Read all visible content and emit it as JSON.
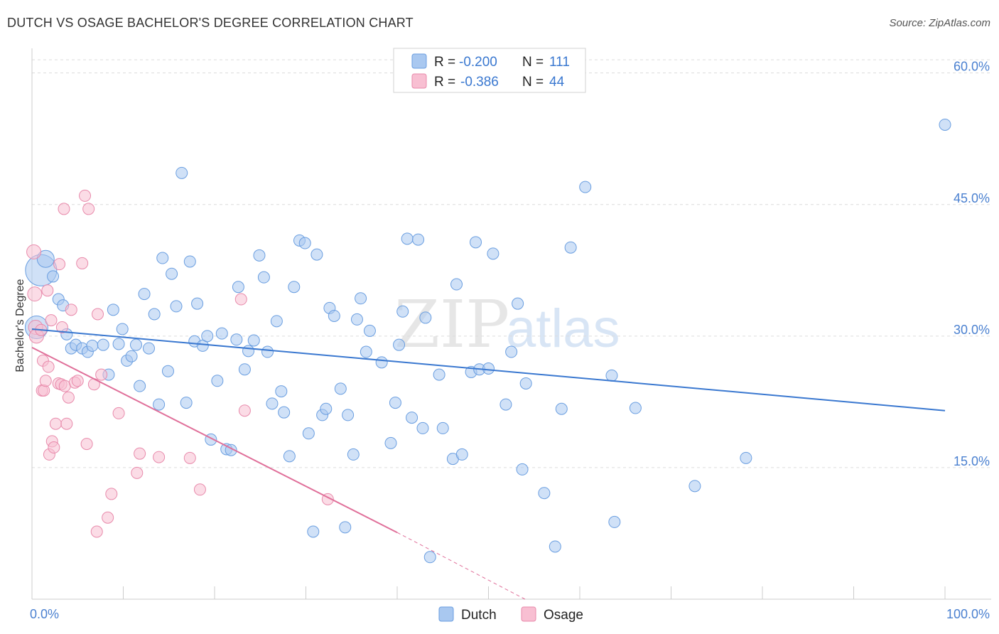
{
  "title": "DUTCH VS OSAGE BACHELOR'S DEGREE CORRELATION CHART",
  "source": "Source: ZipAtlas.com",
  "watermark": {
    "zip": "ZIP",
    "atlas": "atlas"
  },
  "legend": {
    "items": [
      {
        "r_label": "R =",
        "r_value": "-0.200",
        "n_label": "N =",
        "n_value": "111",
        "color": "#a9c8f0",
        "stroke": "#6a9ee0"
      },
      {
        "r_label": "R =",
        "r_value": "-0.386",
        "n_label": "N =",
        "n_value": "44",
        "color": "#f8bfd2",
        "stroke": "#e88aab"
      }
    ]
  },
  "bottom_legend": [
    {
      "label": "Dutch",
      "color": "#a9c8f0",
      "stroke": "#6a9ee0"
    },
    {
      "label": "Osage",
      "color": "#f8bfd2",
      "stroke": "#e88aab"
    }
  ],
  "chart_data": {
    "type": "scatter",
    "title": "DUTCH VS OSAGE BACHELOR'S DEGREE CORRELATION CHART",
    "xlabel": "",
    "ylabel": "Bachelor's Degree",
    "xlim": [
      0,
      100
    ],
    "ylim": [
      0,
      62
    ],
    "x_tick_labels": [
      "0.0%",
      "100.0%"
    ],
    "y_ticks": [
      15,
      30,
      45,
      60
    ],
    "y_tick_labels": [
      "15.0%",
      "30.0%",
      "45.0%",
      "60.0%"
    ],
    "grid": true,
    "colors": {
      "dutch": "#3a78d0",
      "osage": "#e0709a"
    },
    "series": [
      {
        "name": "Dutch",
        "trend": {
          "x": [
            0,
            100
          ],
          "y": [
            30.8,
            21.5
          ]
        },
        "points": [
          [
            1.0,
            37.5,
            22
          ],
          [
            0.5,
            31.0,
            16
          ],
          [
            1.5,
            38.8,
            12
          ],
          [
            2.3,
            36.8,
            8
          ],
          [
            2.9,
            34.2,
            8
          ],
          [
            3.4,
            33.5,
            8
          ],
          [
            3.8,
            30.2,
            8
          ],
          [
            4.3,
            28.6,
            8
          ],
          [
            4.8,
            29.0,
            8
          ],
          [
            5.5,
            28.6,
            8
          ],
          [
            6.1,
            28.2,
            8
          ],
          [
            6.6,
            28.9,
            8
          ],
          [
            7.8,
            29.0,
            8
          ],
          [
            8.4,
            25.6,
            8
          ],
          [
            8.9,
            33.0,
            8
          ],
          [
            9.5,
            29.1,
            8
          ],
          [
            9.9,
            30.8,
            8
          ],
          [
            10.4,
            27.2,
            8
          ],
          [
            10.9,
            27.7,
            8
          ],
          [
            11.4,
            29.0,
            8
          ],
          [
            11.8,
            24.3,
            8
          ],
          [
            12.3,
            34.8,
            8
          ],
          [
            12.8,
            28.6,
            8
          ],
          [
            13.4,
            32.5,
            8
          ],
          [
            13.9,
            22.2,
            8
          ],
          [
            14.3,
            38.9,
            8
          ],
          [
            14.9,
            26.0,
            8
          ],
          [
            15.3,
            37.1,
            8
          ],
          [
            15.8,
            33.4,
            8
          ],
          [
            16.4,
            48.6,
            8
          ],
          [
            16.9,
            22.4,
            8
          ],
          [
            17.3,
            38.5,
            8
          ],
          [
            17.8,
            29.4,
            8
          ],
          [
            18.1,
            33.7,
            8
          ],
          [
            18.7,
            28.9,
            8
          ],
          [
            19.2,
            30.0,
            8
          ],
          [
            19.6,
            18.2,
            8
          ],
          [
            20.3,
            24.9,
            8
          ],
          [
            20.8,
            30.3,
            8
          ],
          [
            21.3,
            17.1,
            8
          ],
          [
            21.8,
            17.0,
            8
          ],
          [
            22.4,
            29.6,
            8
          ],
          [
            22.6,
            35.6,
            8
          ],
          [
            23.3,
            26.2,
            8
          ],
          [
            23.7,
            28.3,
            8
          ],
          [
            24.3,
            29.5,
            8
          ],
          [
            24.9,
            39.2,
            8
          ],
          [
            25.4,
            36.7,
            8
          ],
          [
            25.8,
            28.2,
            8
          ],
          [
            26.3,
            22.3,
            8
          ],
          [
            26.8,
            31.7,
            8
          ],
          [
            27.3,
            23.7,
            8
          ],
          [
            27.6,
            21.3,
            8
          ],
          [
            28.2,
            16.3,
            8
          ],
          [
            28.7,
            35.6,
            8
          ],
          [
            29.3,
            40.9,
            8
          ],
          [
            29.9,
            40.6,
            8
          ],
          [
            30.3,
            18.9,
            8
          ],
          [
            30.8,
            7.7,
            8
          ],
          [
            31.2,
            39.3,
            8
          ],
          [
            31.8,
            21.0,
            8
          ],
          [
            32.2,
            21.7,
            8
          ],
          [
            32.6,
            33.2,
            8
          ],
          [
            33.1,
            32.3,
            8
          ],
          [
            33.8,
            24.0,
            8
          ],
          [
            34.3,
            8.2,
            8
          ],
          [
            34.6,
            21.0,
            8
          ],
          [
            35.2,
            16.5,
            8
          ],
          [
            35.6,
            31.9,
            8
          ],
          [
            36.0,
            34.3,
            8
          ],
          [
            36.6,
            28.2,
            8
          ],
          [
            37.0,
            30.6,
            8
          ],
          [
            38.3,
            27.0,
            8
          ],
          [
            39.3,
            17.8,
            8
          ],
          [
            39.8,
            22.4,
            8
          ],
          [
            40.2,
            29.0,
            8
          ],
          [
            40.6,
            32.8,
            8
          ],
          [
            41.1,
            41.1,
            8
          ],
          [
            41.6,
            20.7,
            8
          ],
          [
            42.3,
            41.0,
            8
          ],
          [
            42.8,
            19.5,
            8
          ],
          [
            43.1,
            32.1,
            8
          ],
          [
            43.6,
            4.8,
            8
          ],
          [
            44.6,
            25.6,
            8
          ],
          [
            45.0,
            19.5,
            8
          ],
          [
            46.1,
            16.0,
            8
          ],
          [
            46.5,
            35.9,
            8
          ],
          [
            47.1,
            16.5,
            8
          ],
          [
            48.1,
            25.9,
            8
          ],
          [
            48.6,
            40.7,
            8
          ],
          [
            49.0,
            26.2,
            8
          ],
          [
            50.0,
            26.3,
            8
          ],
          [
            50.5,
            39.4,
            8
          ],
          [
            51.9,
            22.2,
            8
          ],
          [
            52.5,
            28.2,
            8
          ],
          [
            53.2,
            33.7,
            8
          ],
          [
            53.7,
            14.8,
            8
          ],
          [
            54.1,
            24.6,
            8
          ],
          [
            56.1,
            12.1,
            8
          ],
          [
            57.3,
            6.0,
            8
          ],
          [
            58.0,
            21.7,
            8
          ],
          [
            59.0,
            40.1,
            8
          ],
          [
            60.6,
            47.0,
            8
          ],
          [
            63.5,
            25.5,
            8
          ],
          [
            63.8,
            8.8,
            8
          ],
          [
            66.1,
            21.8,
            8
          ],
          [
            72.6,
            12.9,
            8
          ],
          [
            78.2,
            16.1,
            8
          ],
          [
            100.0,
            54.1,
            8
          ]
        ]
      },
      {
        "name": "Osage",
        "trend": {
          "x": [
            0,
            40
          ],
          "y": [
            28.7,
            7.6
          ],
          "ext_x": [
            40,
            54
          ],
          "ext_y": [
            7.6,
            0.0
          ]
        },
        "points": [
          [
            0.2,
            39.6,
            10
          ],
          [
            0.3,
            34.8,
            10
          ],
          [
            0.4,
            31.0,
            10
          ],
          [
            0.5,
            30.0,
            10
          ],
          [
            1.0,
            30.7,
            8
          ],
          [
            1.1,
            23.8,
            8
          ],
          [
            1.2,
            27.2,
            8
          ],
          [
            1.3,
            23.8,
            8
          ],
          [
            1.5,
            24.9,
            8
          ],
          [
            1.7,
            35.2,
            8
          ],
          [
            1.8,
            26.5,
            8
          ],
          [
            1.9,
            16.5,
            8
          ],
          [
            2.1,
            31.8,
            8
          ],
          [
            2.2,
            18.0,
            8
          ],
          [
            2.4,
            17.3,
            8
          ],
          [
            2.6,
            20.0,
            8
          ],
          [
            2.9,
            24.6,
            8
          ],
          [
            3.0,
            38.2,
            8
          ],
          [
            3.2,
            24.5,
            8
          ],
          [
            3.3,
            31.0,
            8
          ],
          [
            3.5,
            44.5,
            8
          ],
          [
            3.6,
            24.3,
            8
          ],
          [
            3.8,
            20.0,
            8
          ],
          [
            4.0,
            23.0,
            8
          ],
          [
            4.3,
            33.0,
            8
          ],
          [
            4.7,
            24.7,
            8
          ],
          [
            5.0,
            24.9,
            8
          ],
          [
            5.5,
            38.3,
            8
          ],
          [
            5.8,
            46.0,
            8
          ],
          [
            6.0,
            17.7,
            8
          ],
          [
            6.2,
            44.5,
            8
          ],
          [
            6.8,
            24.5,
            8
          ],
          [
            7.2,
            32.5,
            8
          ],
          [
            7.1,
            7.7,
            8
          ],
          [
            7.6,
            25.6,
            8
          ],
          [
            8.3,
            9.3,
            8
          ],
          [
            8.7,
            12.0,
            8
          ],
          [
            9.5,
            21.2,
            8
          ],
          [
            11.5,
            14.4,
            8
          ],
          [
            11.8,
            16.6,
            8
          ],
          [
            13.9,
            16.2,
            8
          ],
          [
            17.3,
            16.1,
            8
          ],
          [
            18.4,
            12.5,
            8
          ],
          [
            22.9,
            34.2,
            8
          ],
          [
            23.3,
            21.5,
            8
          ],
          [
            32.4,
            11.4,
            8
          ]
        ]
      }
    ]
  }
}
